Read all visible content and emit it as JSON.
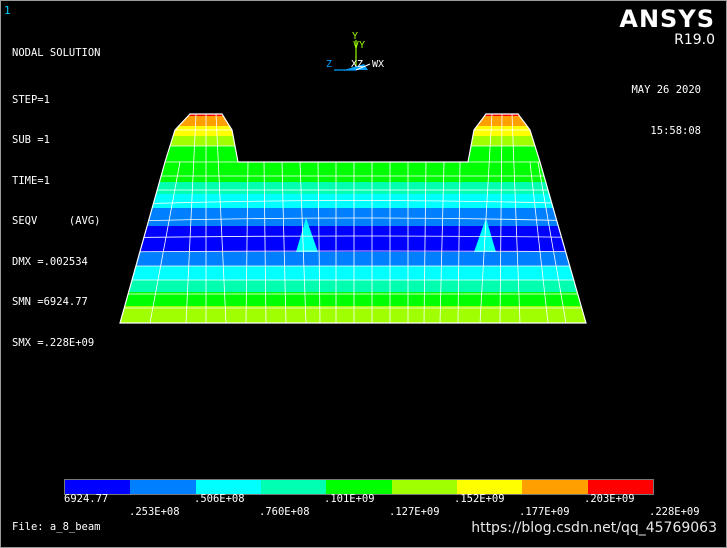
{
  "viewport_number": "1",
  "info": {
    "title": "NODAL SOLUTION",
    "lines": [
      "STEP=1",
      "SUB =1",
      "TIME=1",
      "SEQV     (AVG)",
      "DMX =.002534",
      "SMN =6924.77",
      "SMX =.228E+09"
    ]
  },
  "brand": {
    "name": "ANSYS",
    "version": "R19.0"
  },
  "datetime": {
    "date": "MAY 26 2020",
    "time": "15:58:08"
  },
  "triad": {
    "y_label": "Y",
    "vy_label": "VY",
    "z_label": "Z",
    "xz_label": "XZ",
    "wx_label": "WX"
  },
  "legend": {
    "colors": [
      "#0000ff",
      "#0080ff",
      "#00ffff",
      "#00ffb0",
      "#00ff00",
      "#a0ff00",
      "#ffff00",
      "#ffa000",
      "#ff0000"
    ],
    "top_labels": [
      "6924.77",
      ".506E+08",
      ".101E+09",
      ".152E+09",
      ".203E+09"
    ],
    "bottom_labels": [
      ".253E+08",
      ".760E+08",
      ".127E+09",
      ".177E+09",
      ".228E+09"
    ]
  },
  "file_line": "File: a_8_beam",
  "watermark": "https://blog.csdn.net/qq_45769063"
}
